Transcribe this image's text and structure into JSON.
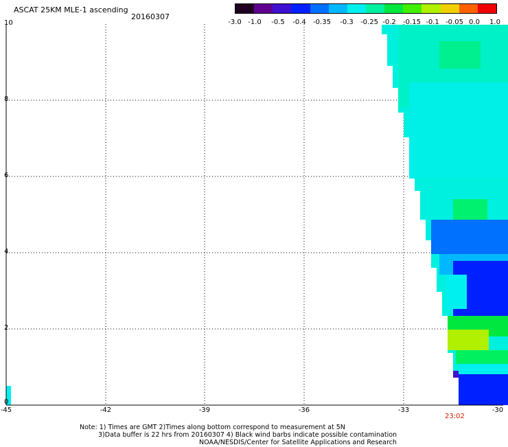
{
  "header": {
    "title": "ASCAT 25KM MLE-1 ascending",
    "date": "20160307"
  },
  "colorbar": {
    "labels": [
      "-3.0",
      "-1.0",
      "-0.5",
      "-0.4",
      "-0.35",
      "-0.3",
      "-0.25",
      "-0.2",
      "-0.15",
      "-0.1",
      "-0.05",
      "0.0",
      "1.0"
    ],
    "colors": [
      "#200020",
      "#600090",
      "#4010d0",
      "#0020ff",
      "#0070ff",
      "#00b8ff",
      "#00f0f0",
      "#00f0a0",
      "#00e840",
      "#40f000",
      "#b0f000",
      "#f0d000",
      "#ff6000",
      "#f00000"
    ]
  },
  "map": {
    "y_ticks": [
      "10",
      "8",
      "6",
      "4",
      "2",
      "0"
    ],
    "x_ticks": [
      "-45",
      "-42",
      "-39",
      "-36",
      "-33",
      "-30"
    ],
    "time_label": "23:02"
  },
  "notes": {
    "line1": "Note: 1) Times are GMT 2)Times along bottom correspond to measurement at 5N",
    "line2": "3)Data buffer is 22 hrs from 20160307 4) Black wind barbs indicate possible contamination",
    "line3": "NOAA/NESDIS/Center for Satellite Applications and Research"
  }
}
